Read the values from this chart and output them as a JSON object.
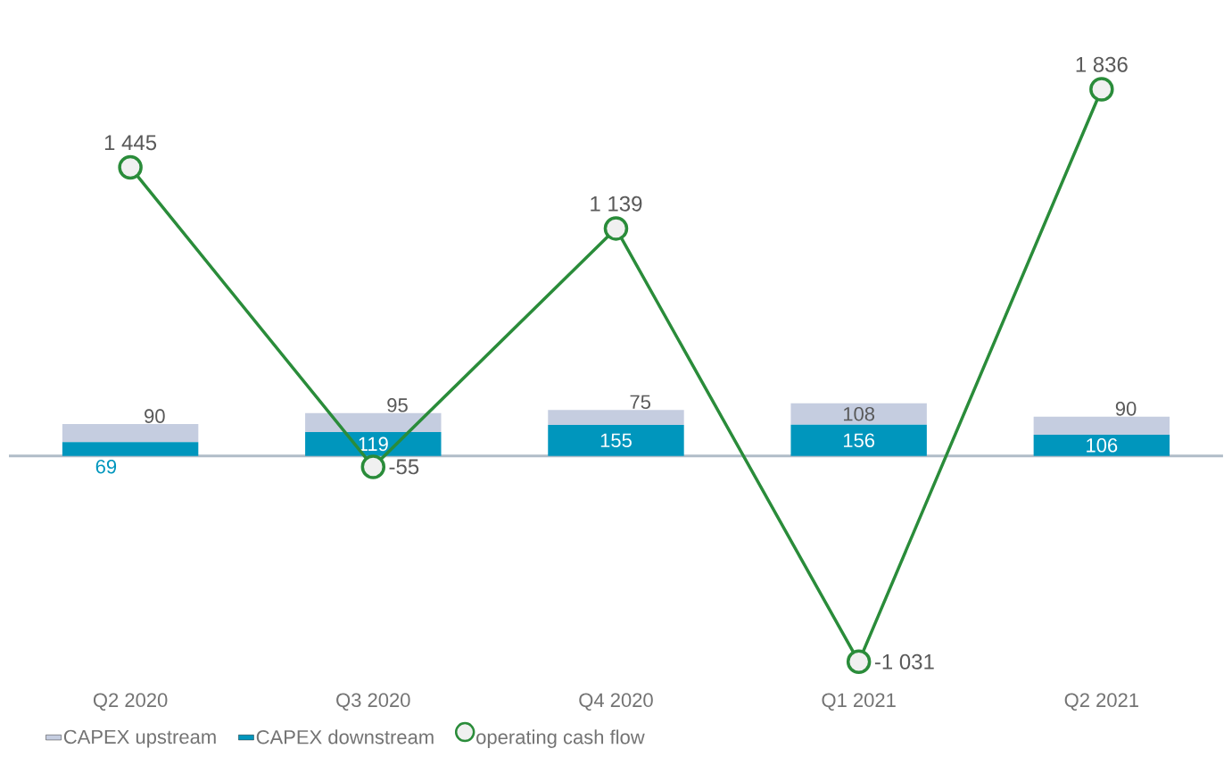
{
  "chart_data": {
    "type": "bar",
    "stacked": true,
    "categories": [
      "Q2 2020",
      "Q3 2020",
      "Q4 2020",
      "Q1 2021",
      "Q2 2021"
    ],
    "series": [
      {
        "name": "CAPEX downstream",
        "color": "#0096bd",
        "values": [
          69,
          119,
          155,
          156,
          106
        ],
        "value_labels": [
          "69",
          "119",
          "155",
          "156",
          "106"
        ]
      },
      {
        "name": "CAPEX upstream",
        "color": "#c5cde0",
        "values": [
          90,
          95,
          75,
          108,
          90
        ],
        "value_labels": [
          "90",
          "95",
          "75",
          "108",
          "90"
        ]
      },
      {
        "name": "operating cash flow",
        "type": "line",
        "color": "#2a8c3a",
        "marker": "circle",
        "values": [
          1445,
          -55,
          1139,
          -1031,
          1836
        ],
        "value_labels": [
          "1 445",
          "-55",
          "1 139",
          "-1 031",
          "1 836"
        ]
      }
    ],
    "tick_labels": "x",
    "legend": "bottom"
  }
}
